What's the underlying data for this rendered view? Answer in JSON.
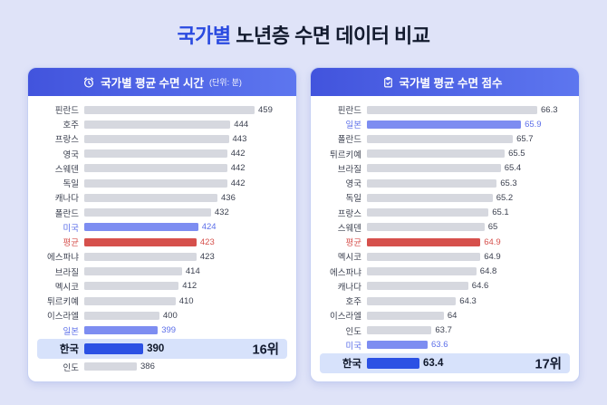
{
  "title": {
    "highlight": "국가별",
    "rest": "노년층 수면 데이터 비교"
  },
  "colors": {
    "background": "#dfe3f8",
    "title_accent": "#2a4ae0",
    "header_gradient_start": "#4254dd",
    "header_gradient_end": "#5d76ef",
    "bar_normal": "#d6d8df",
    "bar_accent": "#7d8df1",
    "bar_average": "#d6504c",
    "bar_korea": "#2c51e4",
    "korea_row_background": "#d7e2fb"
  },
  "icons": [
    {
      "name": "alarm-clock-icon",
      "chart": 0
    },
    {
      "name": "clipboard-check-icon",
      "chart": 1
    }
  ],
  "chart_data": [
    {
      "type": "bar",
      "orientation": "horizontal",
      "title": "국가별 평균 수면 시간",
      "unit": "(단위: 분)",
      "value_range": [
        386,
        459
      ],
      "rows": [
        {
          "label": "핀란드",
          "value": 459,
          "text": "459",
          "kind": "normal"
        },
        {
          "label": "호주",
          "value": 444,
          "text": "444",
          "kind": "normal"
        },
        {
          "label": "프랑스",
          "value": 443,
          "text": "443",
          "kind": "normal"
        },
        {
          "label": "영국",
          "value": 442,
          "text": "442",
          "kind": "normal"
        },
        {
          "label": "스웨덴",
          "value": 442,
          "text": "442",
          "kind": "normal"
        },
        {
          "label": "독일",
          "value": 442,
          "text": "442",
          "kind": "normal"
        },
        {
          "label": "캐나다",
          "value": 436,
          "text": "436",
          "kind": "normal"
        },
        {
          "label": "폴란드",
          "value": 432,
          "text": "432",
          "kind": "normal"
        },
        {
          "label": "미국",
          "value": 424,
          "text": "424",
          "kind": "accent"
        },
        {
          "label": "평균",
          "value": 423,
          "text": "423",
          "kind": "average"
        },
        {
          "label": "에스파냐",
          "value": 423,
          "text": "423",
          "kind": "normal"
        },
        {
          "label": "브라질",
          "value": 414,
          "text": "414",
          "kind": "normal"
        },
        {
          "label": "멕시코",
          "value": 412,
          "text": "412",
          "kind": "normal"
        },
        {
          "label": "튀르키예",
          "value": 410,
          "text": "410",
          "kind": "normal"
        },
        {
          "label": "이스라엘",
          "value": 400,
          "text": "400",
          "kind": "normal"
        },
        {
          "label": "일본",
          "value": 399,
          "text": "399",
          "kind": "accent"
        },
        {
          "label": "한국",
          "value": 390,
          "text": "390",
          "kind": "korea",
          "rank": "16위"
        },
        {
          "label": "인도",
          "value": 386,
          "text": "386",
          "kind": "normal"
        }
      ]
    },
    {
      "type": "bar",
      "orientation": "horizontal",
      "title": "국가별 평균 수면 점수",
      "unit": "",
      "value_range": [
        63.4,
        66.3
      ],
      "rows": [
        {
          "label": "핀란드",
          "value": 66.3,
          "text": "66.3",
          "kind": "normal"
        },
        {
          "label": "일본",
          "value": 65.9,
          "text": "65.9",
          "kind": "accent"
        },
        {
          "label": "폴란드",
          "value": 65.7,
          "text": "65.7",
          "kind": "normal"
        },
        {
          "label": "튀르키예",
          "value": 65.5,
          "text": "65.5",
          "kind": "normal"
        },
        {
          "label": "브라질",
          "value": 65.4,
          "text": "65.4",
          "kind": "normal"
        },
        {
          "label": "영국",
          "value": 65.3,
          "text": "65.3",
          "kind": "normal"
        },
        {
          "label": "독일",
          "value": 65.2,
          "text": "65.2",
          "kind": "normal"
        },
        {
          "label": "프랑스",
          "value": 65.1,
          "text": "65.1",
          "kind": "normal"
        },
        {
          "label": "스웨덴",
          "value": 65,
          "text": "65",
          "kind": "normal"
        },
        {
          "label": "평균",
          "value": 64.9,
          "text": "64.9",
          "kind": "average"
        },
        {
          "label": "멕시코",
          "value": 64.9,
          "text": "64.9",
          "kind": "normal"
        },
        {
          "label": "에스파냐",
          "value": 64.8,
          "text": "64.8",
          "kind": "normal"
        },
        {
          "label": "캐나다",
          "value": 64.6,
          "text": "64.6",
          "kind": "normal"
        },
        {
          "label": "호주",
          "value": 64.3,
          "text": "64.3",
          "kind": "normal"
        },
        {
          "label": "이스라엘",
          "value": 64,
          "text": "64",
          "kind": "normal"
        },
        {
          "label": "인도",
          "value": 63.7,
          "text": "63.7",
          "kind": "normal"
        },
        {
          "label": "미국",
          "value": 63.6,
          "text": "63.6",
          "kind": "accent"
        },
        {
          "label": "한국",
          "value": 63.4,
          "text": "63.4",
          "kind": "korea",
          "rank": "17위"
        }
      ]
    }
  ]
}
